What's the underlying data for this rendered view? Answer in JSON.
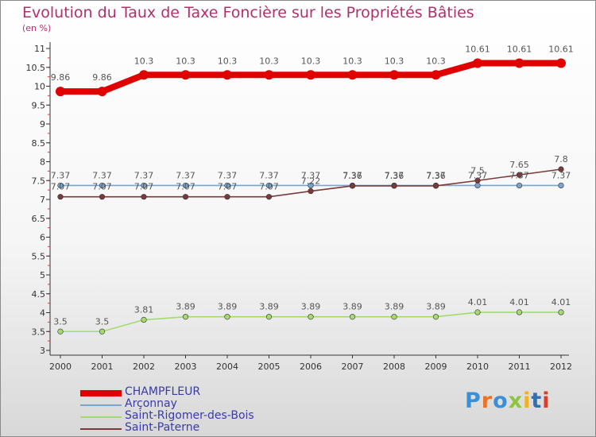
{
  "chart_data": {
    "type": "line",
    "title": "Evolution du Taux de Taxe Foncière sur les Propriétés Bâties",
    "ylabel": "(en %)",
    "xlabel": "",
    "categories": [
      "2000",
      "2001",
      "2002",
      "2003",
      "2004",
      "2005",
      "2006",
      "2007",
      "2008",
      "2009",
      "2010",
      "2011",
      "2012"
    ],
    "ylim": [
      3,
      11
    ],
    "yticks": [
      "3",
      "3.5",
      "4",
      "4.5",
      "5",
      "5.5",
      "6",
      "6.5",
      "7",
      "7.5",
      "8",
      "8.5",
      "9",
      "9.5",
      "10",
      "10.5",
      "11"
    ],
    "grid": false,
    "legend_position": "bottom-left",
    "series": [
      {
        "name": "CHAMPFLEUR",
        "color": "#e00000",
        "values": [
          9.86,
          9.86,
          10.3,
          10.3,
          10.3,
          10.3,
          10.3,
          10.3,
          10.3,
          10.3,
          10.61,
          10.61,
          10.61
        ],
        "labels": [
          "9.86",
          "9.86",
          "10.3",
          "10.3",
          "10.3",
          "10.3",
          "10.3",
          "10.3",
          "10.3",
          "10.3",
          "10.61",
          "10.61",
          "10.61"
        ]
      },
      {
        "name": "Arçonnay",
        "color": "#7aa4cc",
        "values": [
          7.37,
          7.37,
          7.37,
          7.37,
          7.37,
          7.37,
          7.37,
          7.37,
          7.37,
          7.37,
          7.37,
          7.37,
          7.37
        ],
        "labels": [
          "7.37",
          "7.37",
          "7.37",
          "7.37",
          "7.37",
          "7.37",
          "7.37",
          "7.37",
          "7.37",
          "7.37",
          "7.37",
          "7.37",
          "7.37"
        ]
      },
      {
        "name": "Saint-Rigomer-des-Bois",
        "color": "#a3dc6c",
        "values": [
          3.5,
          3.5,
          3.81,
          3.89,
          3.89,
          3.89,
          3.89,
          3.89,
          3.89,
          3.89,
          4.01,
          4.01,
          4.01
        ],
        "labels": [
          "3.5",
          "3.5",
          "3.81",
          "3.89",
          "3.89",
          "3.89",
          "3.89",
          "3.89",
          "3.89",
          "3.89",
          "4.01",
          "4.01",
          "4.01"
        ]
      },
      {
        "name": "Saint-Paterne",
        "color": "#7a3a3a",
        "values": [
          7.07,
          7.07,
          7.07,
          7.07,
          7.07,
          7.07,
          7.22,
          7.36,
          7.36,
          7.36,
          7.5,
          7.65,
          7.8
        ],
        "labels": [
          "7.07",
          "7.07",
          "7.07",
          "7.07",
          "7.07",
          "7.07",
          "7.22",
          "7.36",
          "7.36",
          "7.36",
          "7.5",
          "7.65",
          "7.8"
        ]
      }
    ]
  },
  "logo": {
    "text": "Proxiti",
    "colors": [
      "#3b8fd6",
      "#e8742a",
      "#3b8fd6",
      "#8cc63f",
      "#f2b21a",
      "#2f6fb3",
      "#d8402a"
    ]
  }
}
